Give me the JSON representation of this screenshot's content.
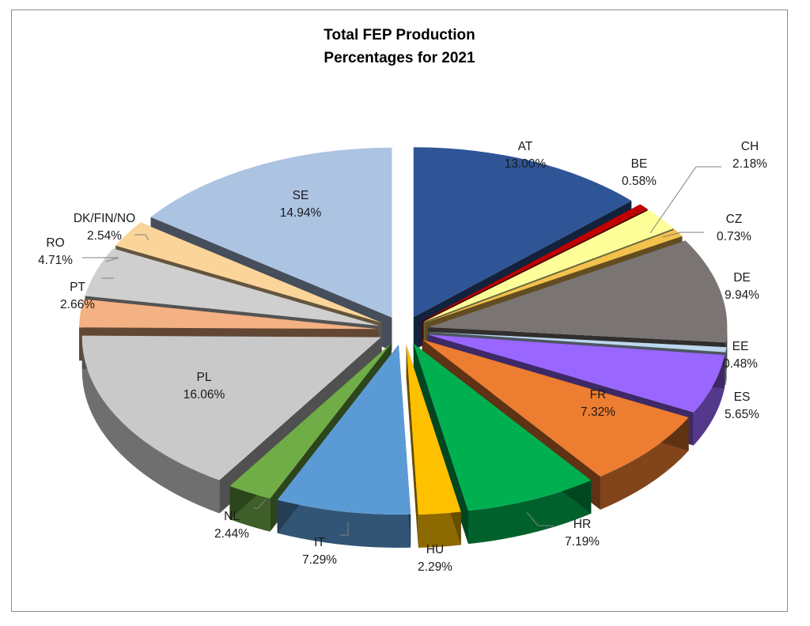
{
  "chart_data": {
    "type": "pie",
    "style": "3d-exploded",
    "title": [
      "Total FEP Production",
      "Percentages for 2021"
    ],
    "categories": [
      "AT",
      "BE",
      "CH",
      "CZ",
      "DE",
      "EE",
      "ES",
      "FR",
      "HR",
      "HU",
      "IT",
      "NL",
      "PL",
      "PT",
      "RO",
      "DK/FIN/NO",
      "SE"
    ],
    "values": [
      13.0,
      0.58,
      2.18,
      0.73,
      9.94,
      0.48,
      5.65,
      7.32,
      7.19,
      2.29,
      7.29,
      2.44,
      16.06,
      2.66,
      4.71,
      2.54,
      14.94
    ],
    "value_labels": [
      "13.00%",
      "0.58%",
      "2.18%",
      "0.73%",
      "9.94%",
      "0.48%",
      "5.65%",
      "7.32%",
      "7.19%",
      "2.29%",
      "7.29%",
      "2.44%",
      "16.06%",
      "2.66%",
      "4.71%",
      "2.54%",
      "14.94%"
    ],
    "colors": [
      "#2f5597",
      "#c00000",
      "#ffff99",
      "#f2c14e",
      "#7a7573",
      "#bdd7ee",
      "#9966ff",
      "#ed7d31",
      "#00b050",
      "#ffc000",
      "#5b9bd5",
      "#70ad47",
      "#c9c9c9",
      "#f4b183",
      "#cfcfcf",
      "#fbd49a",
      "#adc3e2"
    ],
    "legend": "none"
  }
}
